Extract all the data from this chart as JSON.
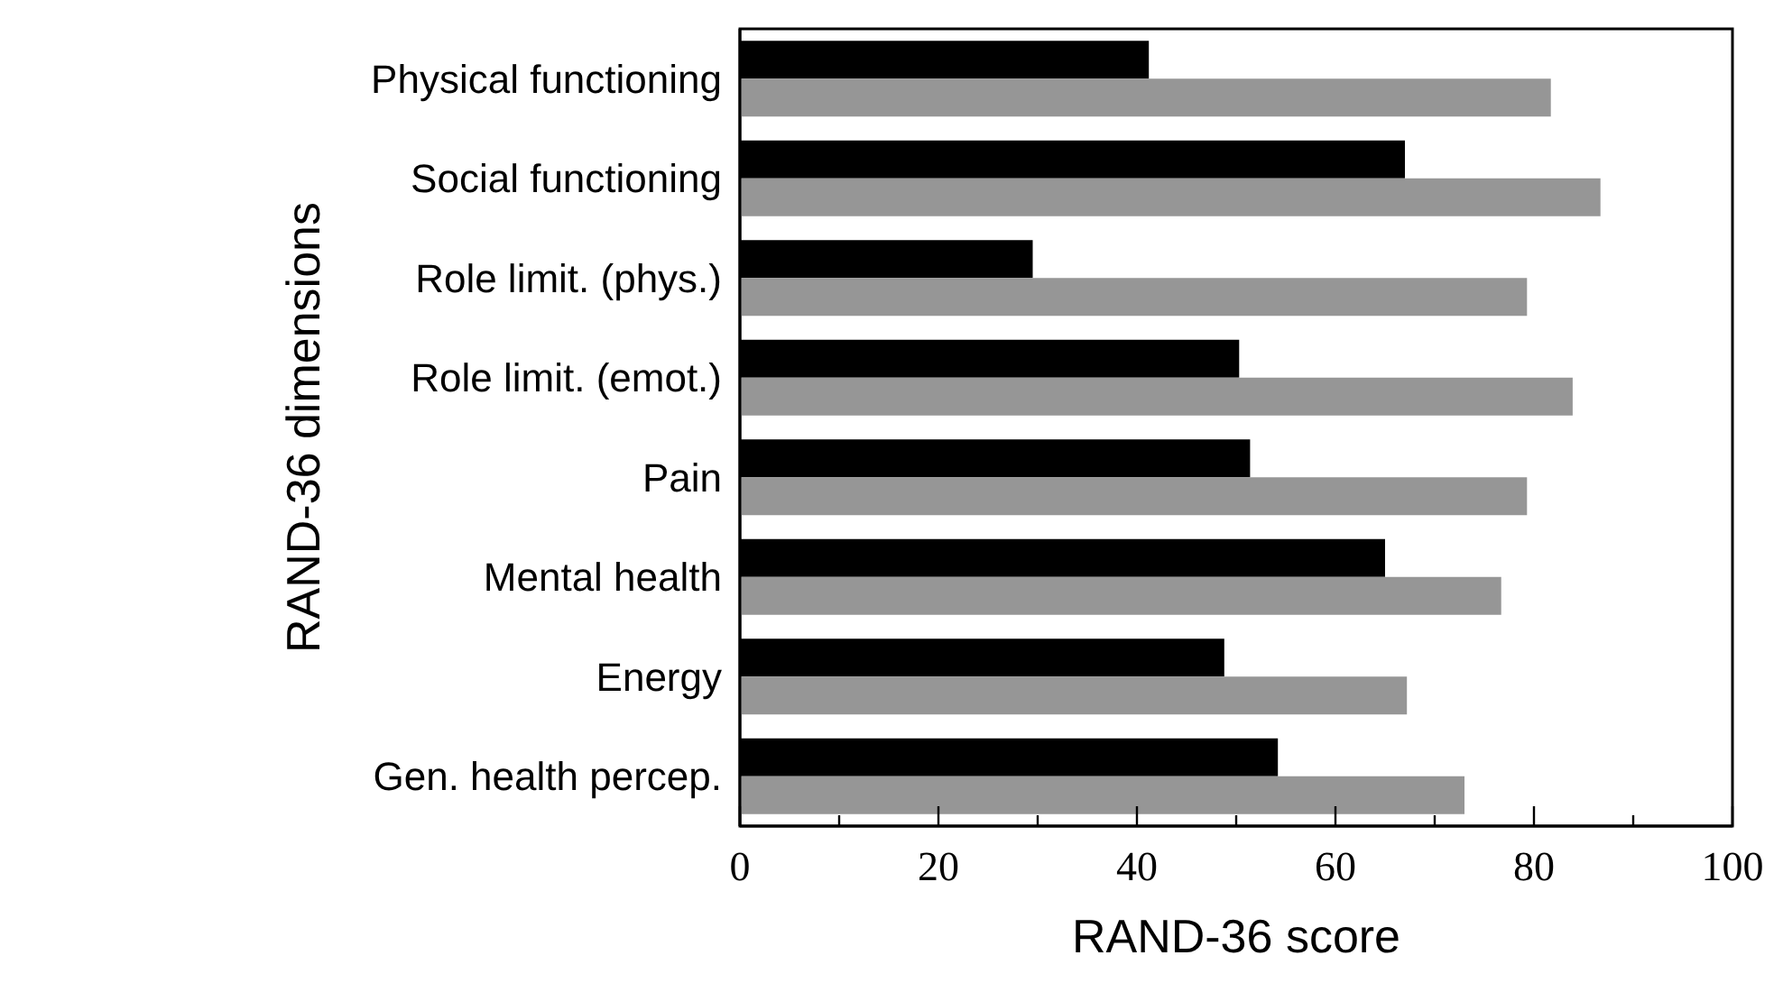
{
  "chart_data": {
    "type": "bar",
    "orientation": "horizontal",
    "xlabel": "RAND-36 score",
    "ylabel": "RAND-36 dimensions",
    "categories": [
      "Physical functioning",
      "Social functioning",
      "Role limit. (phys.)",
      "Role limit. (emot.)",
      "Pain",
      "Mental health",
      "Energy",
      "Gen. health percep."
    ],
    "series": [
      {
        "color": "#000000",
        "values": [
          41.2,
          67.0,
          29.5,
          50.3,
          51.4,
          65.0,
          48.8,
          54.2
        ]
      },
      {
        "color": "#969696",
        "values": [
          81.7,
          86.7,
          79.3,
          83.9,
          79.3,
          76.7,
          67.2,
          73.0
        ]
      }
    ],
    "xlim": [
      0,
      100
    ],
    "xticks": [
      0,
      {
        "value": 10,
        "label": null
      },
      20,
      {
        "value": 30,
        "label": null
      },
      40,
      {
        "value": 50,
        "label": null
      },
      60,
      {
        "value": 70,
        "label": null
      },
      80,
      {
        "value": 90,
        "label": null
      },
      100
    ],
    "grid": false
  }
}
